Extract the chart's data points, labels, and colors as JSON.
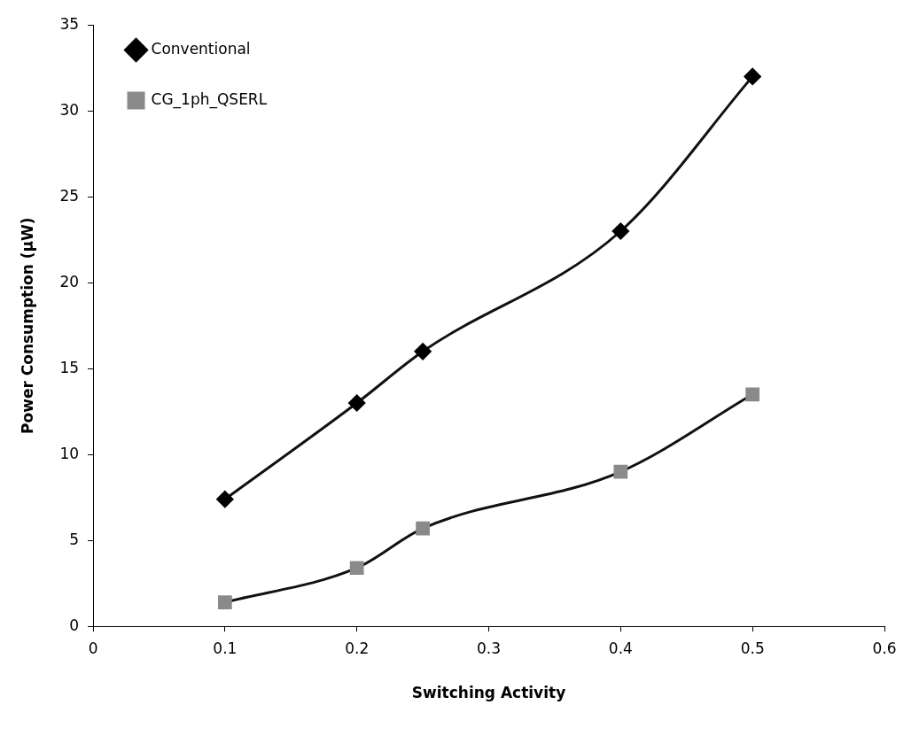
{
  "chart_data": {
    "type": "line",
    "xlabel": "Switching Activity",
    "ylabel": "Power Consumption (µW)",
    "xlim": [
      0,
      0.6
    ],
    "xticks": [
      0,
      0.1,
      0.2,
      0.3,
      0.4,
      0.5,
      0.6
    ],
    "ylim": [
      0,
      35
    ],
    "yticks": [
      0,
      5,
      10,
      15,
      20,
      25,
      30,
      35
    ],
    "grid": false,
    "legend": "top left",
    "series": [
      {
        "name": "Conventional",
        "color": "#000000",
        "marker": "diamond",
        "x": [
          0.1,
          0.2,
          0.25,
          0.4,
          0.5
        ],
        "values": [
          7.4,
          13,
          16,
          23,
          32
        ]
      },
      {
        "name": "CG_1ph_QSERL",
        "color": "#8a8a8a",
        "marker": "square",
        "x": [
          0.1,
          0.2,
          0.25,
          0.4,
          0.5
        ],
        "values": [
          1.4,
          3.4,
          5.7,
          9,
          13.5
        ]
      }
    ]
  }
}
